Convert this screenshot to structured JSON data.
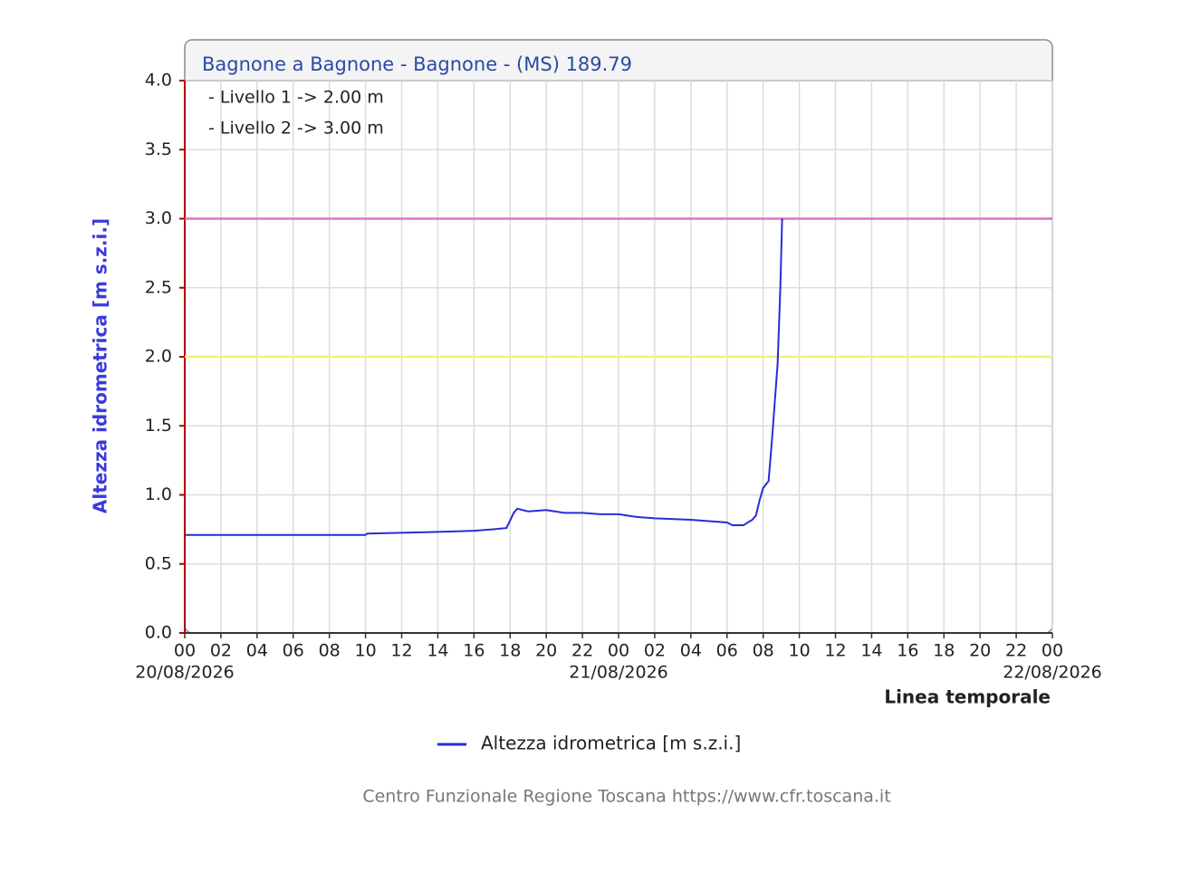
{
  "chart_data": {
    "type": "line",
    "title": "Bagnone a Bagnone - Bagnone -  (MS) 189.79",
    "y_label": "Altezza idrometrica [m s.z.i.]",
    "x_label": "Linea temporale",
    "footer": "Centro Funzionale Regione Toscana https://www.cfr.toscana.it",
    "x": [
      0,
      10,
      10.1,
      13.5,
      16,
      17,
      17.8,
      18.2,
      18.4,
      19,
      20,
      21,
      22,
      23,
      24,
      25,
      26,
      28,
      29,
      30,
      30.3,
      30.9,
      31.4,
      31.6,
      31.8,
      32,
      32.3,
      32.5,
      32.8,
      32.95,
      33.05
    ],
    "series": [
      {
        "name": "Altezza idrometrica [m s.z.i.]",
        "color": "#2b2bd6",
        "values": [
          0.71,
          0.71,
          0.72,
          0.73,
          0.74,
          0.75,
          0.76,
          0.87,
          0.9,
          0.88,
          0.89,
          0.87,
          0.87,
          0.86,
          0.86,
          0.84,
          0.83,
          0.82,
          0.81,
          0.8,
          0.78,
          0.78,
          0.82,
          0.85,
          0.96,
          1.05,
          1.1,
          1.42,
          1.95,
          2.5,
          3.0
        ]
      }
    ],
    "thresholds": [
      {
        "label": "- Livello 1 -> 2.00 m",
        "value": 2,
        "color": "#f2f27a"
      },
      {
        "label": "- Livello 2 -> 3.00 m",
        "value": 3,
        "color": "#e070c8"
      }
    ],
    "xlim": [
      0,
      48
    ],
    "xticks": [
      {
        "value": 0,
        "label": "00"
      },
      {
        "value": 2,
        "label": "02"
      },
      {
        "value": 4,
        "label": "04"
      },
      {
        "value": 6,
        "label": "06"
      },
      {
        "value": 8,
        "label": "08"
      },
      10,
      12,
      14,
      16,
      18,
      20,
      22,
      {
        "value": 24,
        "label": "00"
      },
      {
        "value": 26,
        "label": "02"
      },
      {
        "value": 28,
        "label": "04"
      },
      {
        "value": 30,
        "label": "06"
      },
      {
        "value": 32,
        "label": "08"
      },
      {
        "value": 34,
        "label": "10"
      },
      {
        "value": 36,
        "label": "12"
      },
      {
        "value": 38,
        "label": "14"
      },
      {
        "value": 40,
        "label": "16"
      },
      {
        "value": 42,
        "label": "18"
      },
      {
        "value": 44,
        "label": "20"
      },
      {
        "value": 46,
        "label": "22"
      },
      {
        "value": 48,
        "label": "00"
      }
    ],
    "x_date_labels": [
      {
        "value": 0,
        "label": "20/08/2026"
      },
      {
        "value": 24,
        "label": "21/08/2026"
      },
      {
        "value": 48,
        "label": "22/08/2026"
      }
    ],
    "ylim": [
      0,
      4
    ],
    "yticks": [
      {
        "value": 0,
        "label": "0.0"
      },
      0.5,
      {
        "value": 1,
        "label": "1.0"
      },
      1.5,
      {
        "value": 2,
        "label": "2.0"
      },
      2.5,
      {
        "value": 3,
        "label": "3.0"
      },
      3.5,
      {
        "value": 4,
        "label": "4.0"
      }
    ],
    "grid": true
  }
}
